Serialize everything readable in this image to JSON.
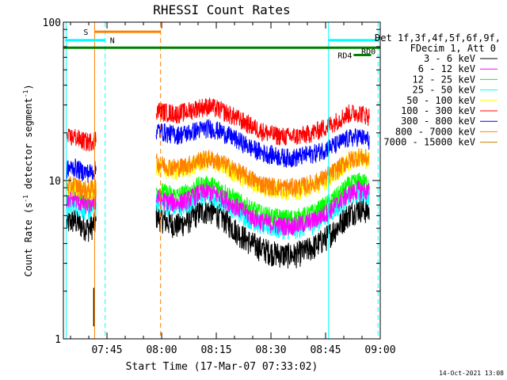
{
  "chart_data": {
    "type": "line",
    "title": "RHESSI Count Rates",
    "xlabel": "Start Time (17-Mar-07 07:33:02)",
    "ylabel_main": "Count Rate (s",
    "ylabel_sup1": "-1",
    "ylabel_mid": " detector segment",
    "ylabel_sup2": "-1",
    "ylabel_end": ")",
    "yscale": "log",
    "ylim": [
      1,
      100
    ],
    "xlim_minutes": [
      33.03,
      120.0
    ],
    "x_ticks": [
      {
        "minute": 45,
        "label": "07:45"
      },
      {
        "minute": 60,
        "label": "08:00"
      },
      {
        "minute": 75,
        "label": "08:15"
      },
      {
        "minute": 90,
        "label": "08:30"
      },
      {
        "minute": 105,
        "label": "08:45"
      },
      {
        "minute": 120,
        "label": "09:00"
      }
    ],
    "y_ticks": [
      {
        "value": 1,
        "label": "1"
      },
      {
        "value": 10,
        "label": "10"
      },
      {
        "value": 100,
        "label": "100"
      }
    ],
    "x_axis_units": "minutes after 07:00",
    "series": [
      {
        "name": "3 - 6 keV",
        "color": "#000000",
        "pre": [
          5.4,
          5.6,
          5.2,
          5.0,
          5.4
        ],
        "main": [
          6.0,
          5.5,
          5.2,
          5.6,
          6.3,
          6.5,
          6.0,
          5.2,
          4.5,
          4.0,
          3.7,
          3.5,
          3.4,
          3.4,
          3.6,
          3.9,
          4.4,
          5.1,
          6.1,
          6.7,
          6.4
        ]
      },
      {
        "name": "6 - 12 keV",
        "color": "#ff00ff",
        "pre": [
          7.6,
          7.8,
          7.2,
          7.0,
          7.5
        ],
        "main": [
          7.8,
          7.4,
          7.2,
          7.6,
          8.3,
          8.5,
          8.0,
          7.2,
          6.5,
          5.9,
          5.5,
          5.3,
          5.2,
          5.2,
          5.4,
          5.7,
          6.3,
          7.1,
          8.2,
          8.8,
          8.5
        ]
      },
      {
        "name": "12 - 25 keV",
        "color": "#00ff00",
        "pre": [
          8.0,
          8.3,
          7.7,
          7.5,
          8.0
        ],
        "main": [
          8.8,
          8.3,
          8.0,
          8.5,
          9.3,
          9.5,
          8.9,
          8.0,
          7.2,
          6.6,
          6.1,
          5.9,
          5.8,
          5.8,
          6.0,
          6.4,
          7.1,
          8.0,
          9.3,
          9.9,
          9.6
        ]
      },
      {
        "name": "25 - 50 keV",
        "color": "#00ffff",
        "pre": [
          6.8,
          7.0,
          6.6,
          6.4,
          6.8
        ],
        "main": [
          7.2,
          6.9,
          6.7,
          7.1,
          7.8,
          8.0,
          7.5,
          6.8,
          6.1,
          5.6,
          5.2,
          5.0,
          4.9,
          4.9,
          5.1,
          5.4,
          6.0,
          6.8,
          7.8,
          8.4,
          8.1
        ]
      },
      {
        "name": "50 - 100 keV",
        "color": "#ffff00",
        "pre": [
          8.9,
          9.2,
          8.6,
          8.4,
          8.9
        ],
        "main": [
          12.5,
          11.8,
          11.5,
          12.0,
          13.0,
          13.3,
          12.6,
          11.6,
          10.6,
          9.8,
          9.1,
          8.8,
          8.7,
          8.7,
          8.9,
          9.4,
          10.2,
          11.5,
          13.2,
          14.0,
          13.5
        ]
      },
      {
        "name": "100 - 300 keV",
        "color": "#ff0000",
        "pre": [
          18.5,
          19.0,
          18.0,
          17.5,
          18.5
        ],
        "main": [
          28.0,
          27.0,
          26.5,
          27.5,
          29.0,
          29.5,
          28.0,
          26.0,
          24.0,
          22.0,
          20.5,
          19.5,
          19.0,
          19.0,
          19.5,
          20.5,
          22.0,
          24.0,
          26.5,
          27.0,
          25.5
        ]
      },
      {
        "name": "300 - 800 keV",
        "color": "#0000ff",
        "pre": [
          11.8,
          12.2,
          11.5,
          11.2,
          11.8
        ],
        "main": [
          21.0,
          20.0,
          19.5,
          20.0,
          21.0,
          21.5,
          20.5,
          19.0,
          17.5,
          16.0,
          15.0,
          14.5,
          14.0,
          14.0,
          14.5,
          15.0,
          16.0,
          17.0,
          18.5,
          19.0,
          18.0
        ]
      },
      {
        "name": "800 - 7000 keV",
        "color": "#ff8000",
        "pre": [
          9.2,
          9.5,
          8.9,
          8.7,
          9.2
        ],
        "main": [
          13.0,
          12.4,
          12.1,
          12.6,
          13.5,
          13.8,
          13.1,
          12.1,
          11.1,
          10.2,
          9.5,
          9.2,
          9.1,
          9.1,
          9.3,
          9.8,
          10.6,
          11.8,
          13.4,
          14.2,
          13.7
        ]
      },
      {
        "name": "7000 - 15000 keV",
        "color": "#cc8000",
        "pre": [],
        "main": []
      }
    ],
    "pre_interval_minutes": [
      34.0,
      42.0
    ],
    "main_interval_minutes": [
      58.5,
      117.0
    ],
    "spike_minute": 41.4,
    "spike_range": [
      1.2,
      2.1
    ],
    "vertical_lines": [
      {
        "minute": 41.6,
        "color": "#ff8000",
        "style": "solid"
      },
      {
        "minute": 33.8,
        "color": "#00ffff",
        "style": "solid"
      },
      {
        "minute": 44.5,
        "color": "#00ffff",
        "style": "dashed"
      },
      {
        "minute": 59.7,
        "color": "#ff8000",
        "style": "dashed"
      },
      {
        "minute": 105.8,
        "color": "#00ffff",
        "style": "solid"
      },
      {
        "minute": 119.4,
        "color": "#00ffff",
        "style": "dashed"
      }
    ],
    "status_bars": [
      {
        "label": "S",
        "color": "#ff8000",
        "start": 41.6,
        "end": 59.7,
        "value": 87
      },
      {
        "label": "N",
        "color": "#00ffff",
        "start": 33.5,
        "end": 44.5,
        "value": 77
      },
      {
        "label": "",
        "color": "#008000",
        "start": 33.0,
        "end": 121.0,
        "value": 69
      },
      {
        "label": "RD0",
        "color": "#00ffff",
        "start": 105.8,
        "end": 119.6,
        "value": 77
      },
      {
        "label": "RD4",
        "color": "#008000",
        "start": 112.7,
        "end": 117.5,
        "value": 62
      }
    ],
    "legend_header": [
      "Det 1f,3f,4f,5f,6f,9f,",
      "FDecim 1, Att 0"
    ],
    "timestamp": "14-Oct-2021 13:08"
  }
}
